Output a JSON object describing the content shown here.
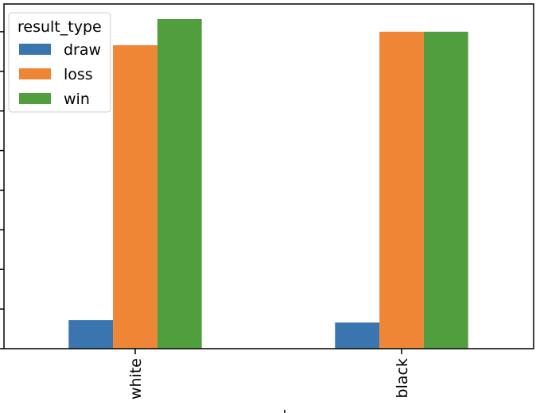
{
  "chart_data": {
    "type": "bar",
    "title": "",
    "xlabel": "",
    "ylabel": "",
    "categories": [
      "white",
      "black"
    ],
    "series": [
      {
        "name": "draw",
        "color": "#3a75b0",
        "values": [
          36,
          33
        ]
      },
      {
        "name": "loss",
        "color": "#ef8636",
        "values": [
          383,
          400
        ]
      },
      {
        "name": "win",
        "color": "#519e3e",
        "values": [
          416,
          400
        ]
      }
    ],
    "ylim": [
      0,
      435
    ],
    "yticks": [
      0,
      50,
      100,
      150,
      200,
      250,
      300,
      350,
      400
    ],
    "legend": {
      "title": "result_type",
      "placement": "top-left"
    },
    "grid": false
  }
}
